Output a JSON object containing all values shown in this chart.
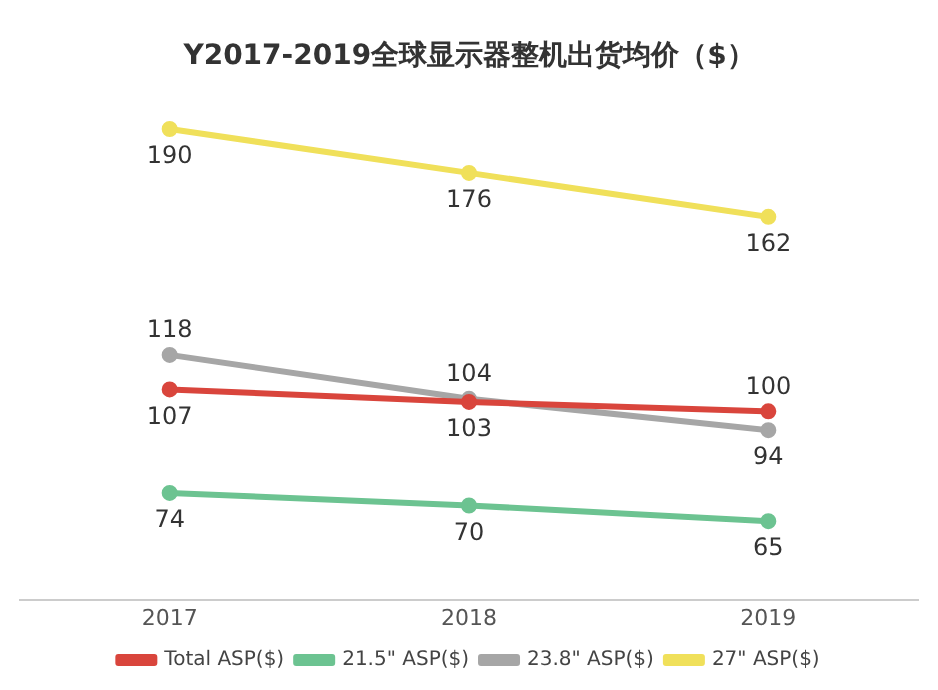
{
  "chart_data": {
    "type": "line",
    "title": "Y2017-2019全球显示器整机出货均价（$）",
    "categories": [
      "2017",
      "2018",
      "2019"
    ],
    "series": [
      {
        "name": "Total ASP($)",
        "color": "#d9453c",
        "values": [
          107,
          103,
          100
        ]
      },
      {
        "name": "21.5\" ASP($)",
        "color": "#6cc391",
        "values": [
          74,
          70,
          65
        ]
      },
      {
        "name": "23.8\" ASP($)",
        "color": "#a6a6a6",
        "values": [
          118,
          104,
          94
        ]
      },
      {
        "name": "27\" ASP($)",
        "color": "#f0e05a",
        "values": [
          190,
          176,
          162
        ]
      }
    ],
    "data_labels": true,
    "grid": false,
    "legend": "bottom",
    "marker": "circle",
    "line_style": "solid",
    "tick_labels": "x"
  }
}
